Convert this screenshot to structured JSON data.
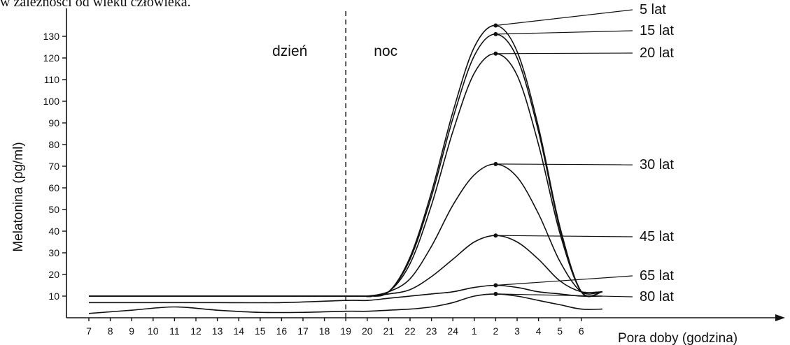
{
  "caption": "w zależności od wieku człowieka.",
  "chart_data": {
    "type": "line",
    "ylabel": "Melatonina (pg/ml)",
    "xlabel": "Pora doby (godzina)",
    "ylim": [
      0,
      137
    ],
    "y_ticks": [
      10,
      20,
      30,
      40,
      50,
      60,
      70,
      80,
      90,
      100,
      110,
      120,
      130
    ],
    "x_ticks": [
      "7",
      "8",
      "9",
      "10",
      "11",
      "12",
      "13",
      "14",
      "15",
      "16",
      "17",
      "18",
      "19",
      "20",
      "21",
      "22",
      "23",
      "24",
      "1",
      "2",
      "3",
      "4",
      "5",
      "6"
    ],
    "regions": [
      {
        "label": "dzień",
        "start": "7",
        "end": "19"
      },
      {
        "label": "noc",
        "start": "19",
        "end": "6"
      }
    ],
    "divider_at": "19",
    "series": [
      {
        "name": "5 lat",
        "peak": 135,
        "end": 12,
        "x": [
          "7",
          "19",
          "20",
          "21",
          "22",
          "23",
          "24",
          "1",
          "2",
          "3",
          "4",
          "5",
          "6"
        ],
        "values": [
          10,
          10,
          10,
          12,
          28,
          58,
          95,
          125,
          135,
          123,
          88,
          42,
          12
        ]
      },
      {
        "name": "15 lat",
        "peak": 131,
        "end": 12,
        "x": [
          "7",
          "19",
          "20",
          "21",
          "22",
          "23",
          "24",
          "1",
          "2",
          "3",
          "4",
          "5",
          "6"
        ],
        "values": [
          10,
          10,
          10,
          12,
          27,
          56,
          92,
          121,
          131,
          120,
          86,
          41,
          12
        ]
      },
      {
        "name": "20 lat",
        "peak": 122,
        "end": 12,
        "x": [
          "7",
          "19",
          "20",
          "21",
          "22",
          "23",
          "24",
          "1",
          "2",
          "3",
          "4",
          "5",
          "6"
        ],
        "values": [
          10,
          10,
          10,
          12,
          25,
          52,
          86,
          113,
          122,
          112,
          80,
          39,
          12
        ]
      },
      {
        "name": "30 lat",
        "peak": 71,
        "end": 12,
        "x": [
          "7",
          "19",
          "20",
          "21",
          "22",
          "23",
          "24",
          "1",
          "2",
          "3",
          "4",
          "5",
          "6"
        ],
        "values": [
          10,
          10,
          10,
          12,
          18,
          33,
          52,
          66,
          71,
          65,
          48,
          26,
          12
        ]
      },
      {
        "name": "45 lat",
        "peak": 38,
        "end": 12,
        "x": [
          "7",
          "19",
          "20",
          "21",
          "22",
          "23",
          "24",
          "1",
          "2",
          "3",
          "4",
          "5",
          "6"
        ],
        "values": [
          10,
          10,
          10,
          11,
          13,
          19,
          27,
          35,
          38,
          35,
          27,
          17,
          12
        ]
      },
      {
        "name": "65 lat",
        "peak": 15,
        "end": 10,
        "x": [
          "7",
          "10",
          "13",
          "16",
          "19",
          "20",
          "21",
          "22",
          "23",
          "24",
          "1",
          "2",
          "3",
          "4",
          "5",
          "6"
        ],
        "values": [
          7,
          7,
          7,
          7,
          8,
          8,
          9,
          10,
          11,
          12,
          14,
          15,
          14,
          12,
          11,
          10
        ]
      },
      {
        "name": "80 lat",
        "peak": 11,
        "end": 4,
        "x": [
          "7",
          "9",
          "11",
          "13",
          "15",
          "17",
          "19",
          "20",
          "21",
          "22",
          "23",
          "24",
          "1",
          "2",
          "3",
          "4",
          "5",
          "6"
        ],
        "values": [
          2,
          3.5,
          5,
          3.5,
          2.5,
          2.5,
          3,
          3,
          3.5,
          4,
          5,
          7,
          10,
          11,
          10,
          8,
          6,
          4
        ]
      }
    ]
  }
}
